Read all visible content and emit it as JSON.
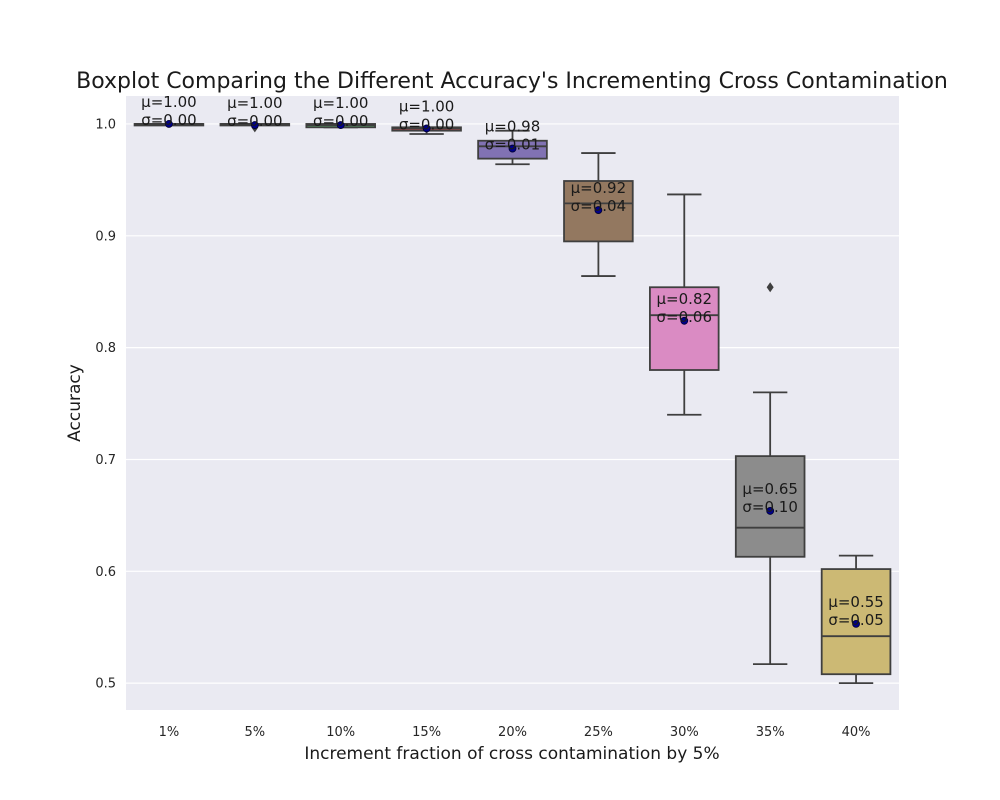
{
  "chart_data": {
    "type": "box",
    "title": "Boxplot Comparing the Different Accuracy's Incrementing Cross Contamination",
    "xlabel": "Increment fraction of cross contamination by 5%",
    "ylabel": "Accuracy",
    "categories": [
      "1%",
      "5%",
      "10%",
      "15%",
      "20%",
      "25%",
      "30%",
      "35%",
      "40%"
    ],
    "ylim": [
      0.476,
      1.025
    ],
    "yticks": [
      0.5,
      0.6,
      0.7,
      0.8,
      0.9,
      1.0
    ],
    "ytick_labels": [
      "0.5",
      "0.6",
      "0.7",
      "0.8",
      "0.9",
      "1.0"
    ],
    "grid": true,
    "background": "#eaeaf2",
    "mean_marker_color": "#00008b",
    "boxes": [
      {
        "category": "1%",
        "color": "#4c72b0",
        "whisker_low": 1.0,
        "q1": 1.0,
        "median": 1.0,
        "q3": 1.0,
        "whisker_high": 1.0,
        "fliers": [],
        "mean": 1.0,
        "mean_label": "μ=1.00",
        "std_label": "σ=0.00"
      },
      {
        "category": "5%",
        "color": "#dd8452",
        "whisker_low": 1.0,
        "q1": 1.0,
        "median": 1.0,
        "q3": 1.0,
        "whisker_high": 1.0,
        "fliers": [
          0.997
        ],
        "mean": 0.999,
        "mean_label": "μ=1.00",
        "std_label": "σ=0.00"
      },
      {
        "category": "10%",
        "color": "#55a868",
        "whisker_low": 0.997,
        "q1": 0.997,
        "median": 0.999,
        "q3": 1.0,
        "whisker_high": 1.0,
        "fliers": [],
        "mean": 0.999,
        "mean_label": "μ=1.00",
        "std_label": "σ=0.00"
      },
      {
        "category": "15%",
        "color": "#c44e52",
        "whisker_low": 0.991,
        "q1": 0.994,
        "median": 0.996,
        "q3": 0.997,
        "whisker_high": 0.997,
        "fliers": [],
        "mean": 0.996,
        "mean_label": "μ=1.00",
        "std_label": "σ=0.00"
      },
      {
        "category": "20%",
        "color": "#8172b3",
        "whisker_low": 0.964,
        "q1": 0.969,
        "median": 0.98,
        "q3": 0.985,
        "whisker_high": 0.994,
        "fliers": [],
        "mean": 0.978,
        "mean_label": "μ=0.98",
        "std_label": "σ=0.01"
      },
      {
        "category": "25%",
        "color": "#937860",
        "whisker_low": 0.864,
        "q1": 0.895,
        "median": 0.929,
        "q3": 0.949,
        "whisker_high": 0.974,
        "fliers": [],
        "mean": 0.923,
        "mean_label": "μ=0.92",
        "std_label": "σ=0.04"
      },
      {
        "category": "30%",
        "color": "#da8bc3",
        "whisker_low": 0.74,
        "q1": 0.78,
        "median": 0.829,
        "q3": 0.854,
        "whisker_high": 0.937,
        "fliers": [],
        "mean": 0.824,
        "mean_label": "μ=0.82",
        "std_label": "σ=0.06"
      },
      {
        "category": "35%",
        "color": "#8c8c8c",
        "whisker_low": 0.517,
        "q1": 0.613,
        "median": 0.639,
        "q3": 0.703,
        "whisker_high": 0.76,
        "fliers": [
          0.854
        ],
        "mean": 0.654,
        "mean_label": "μ=0.65",
        "std_label": "σ=0.10"
      },
      {
        "category": "40%",
        "color": "#ccb974",
        "whisker_low": 0.5,
        "q1": 0.508,
        "median": 0.542,
        "q3": 0.602,
        "whisker_high": 0.614,
        "fliers": [],
        "mean": 0.553,
        "mean_label": "μ=0.55",
        "std_label": "σ=0.05"
      }
    ]
  }
}
